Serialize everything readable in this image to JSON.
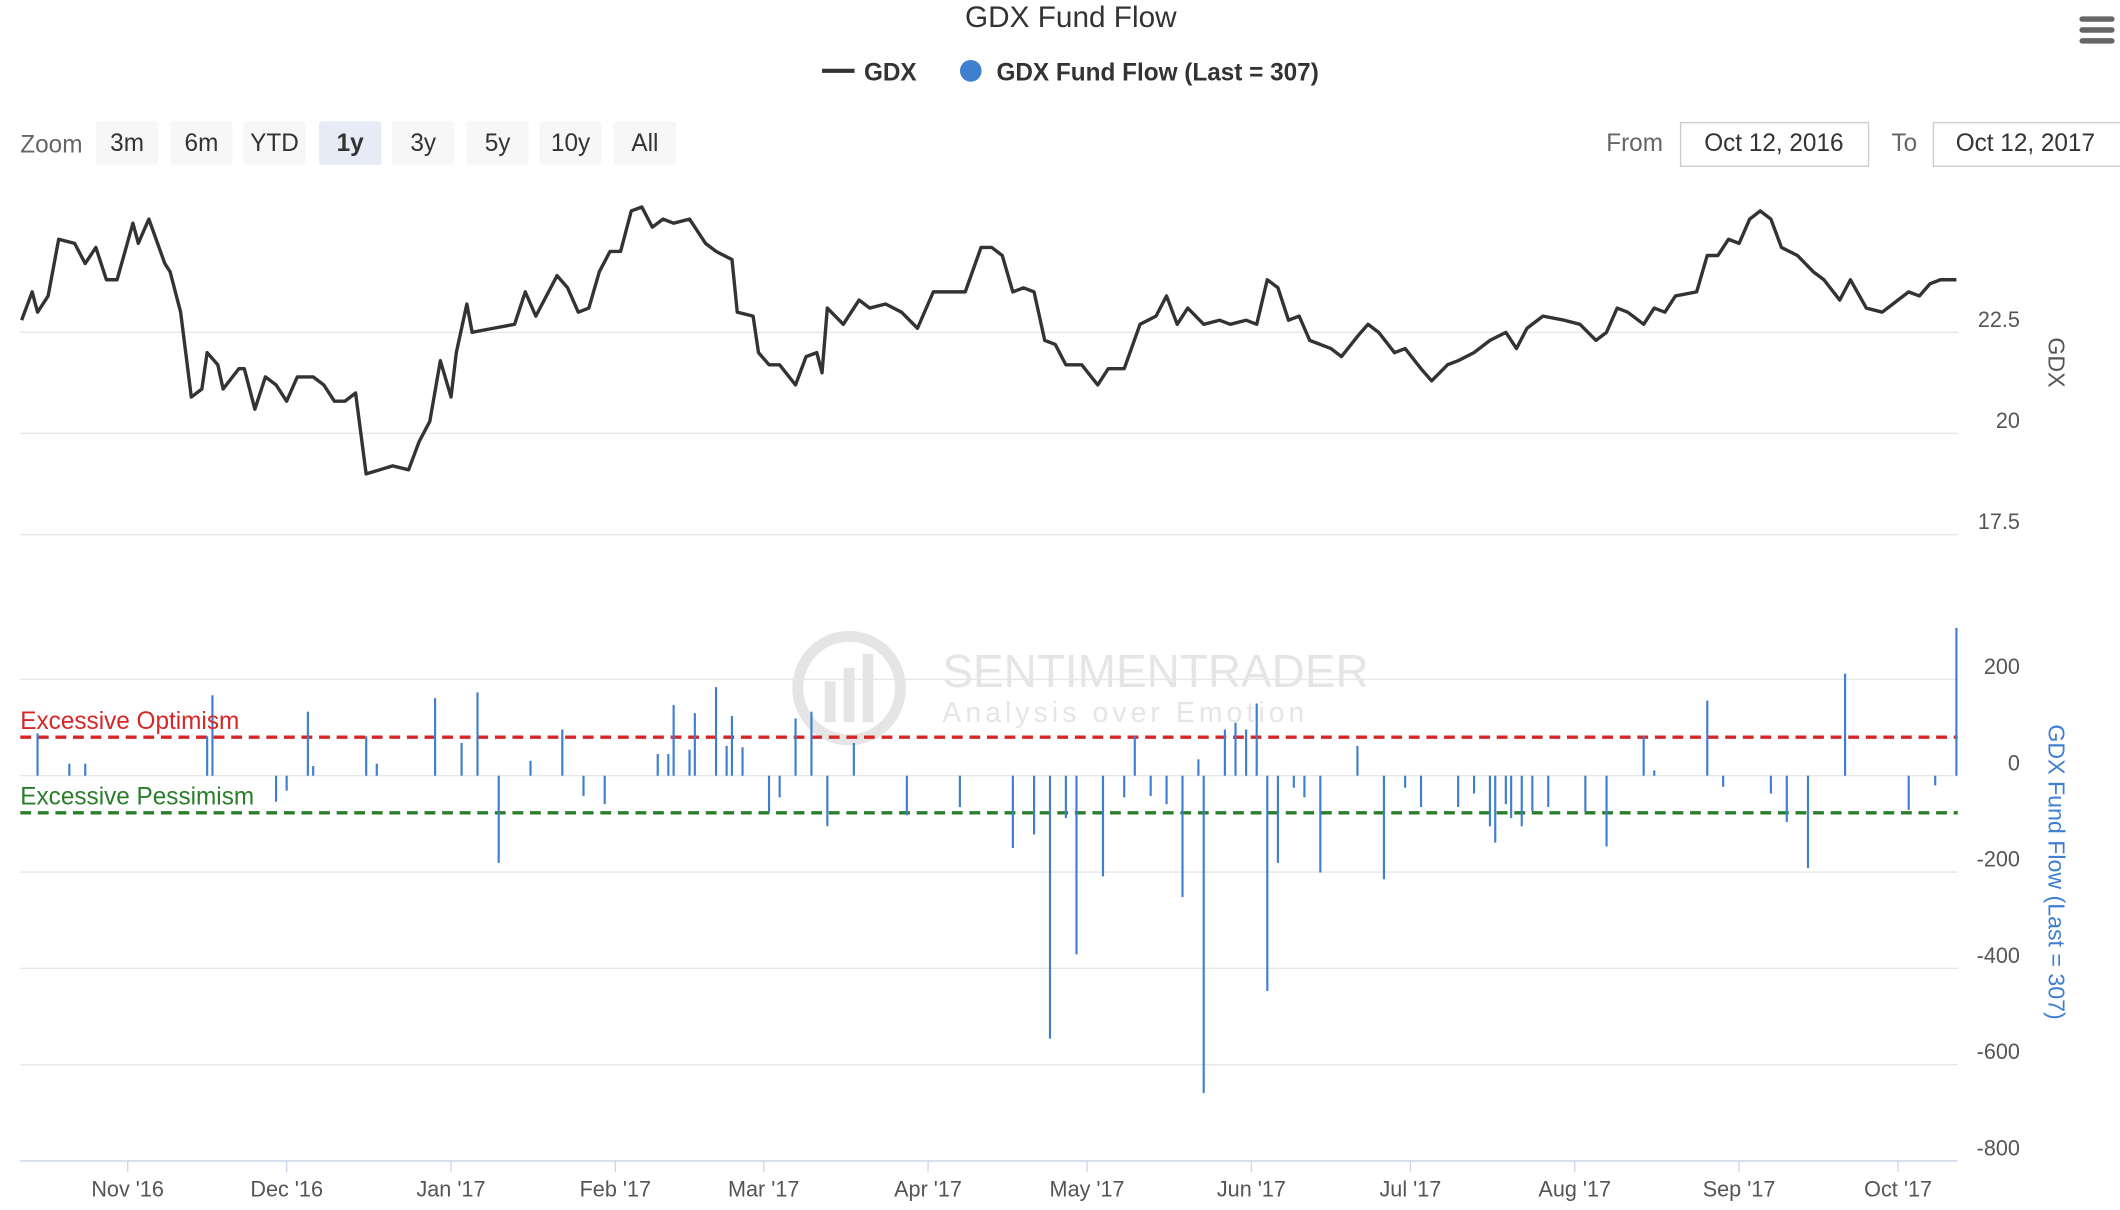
{
  "title": "GDX Fund Flow",
  "zoom": {
    "label": "Zoom",
    "buttons": [
      "3m",
      "6m",
      "YTD",
      "1y",
      "3y",
      "5y",
      "10y",
      "All"
    ],
    "selected": "1y"
  },
  "range": {
    "from_label": "From",
    "from": "Oct 12, 2016",
    "to_label": "To",
    "to": "Oct 12, 2017"
  },
  "watermark": {
    "name": "SENTIMENTRADER",
    "tagline": "Analysis over Emotion"
  },
  "chart_data": [
    {
      "type": "line",
      "y_label": "GDX",
      "xlim": [
        "2016-10-12",
        "2017-10-12"
      ],
      "ylim": [
        16.4,
        26
      ],
      "yticks": [
        17.5,
        20,
        22.5
      ],
      "grid": true,
      "series": [
        {
          "name": "GDX",
          "color": "#333333",
          "x": [
            "2016-10-12",
            "2016-10-14",
            "2016-10-15",
            "2016-10-17",
            "2016-10-19",
            "2016-10-22",
            "2016-10-24",
            "2016-10-26",
            "2016-10-28",
            "2016-10-30",
            "2016-11-02",
            "2016-11-03",
            "2016-11-05",
            "2016-11-08",
            "2016-11-09",
            "2016-11-11",
            "2016-11-13",
            "2016-11-15",
            "2016-11-16",
            "2016-11-18",
            "2016-11-19",
            "2016-11-22",
            "2016-11-23",
            "2016-11-25",
            "2016-11-27",
            "2016-11-29",
            "2016-12-01",
            "2016-12-03",
            "2016-12-06",
            "2016-12-08",
            "2016-12-10",
            "2016-12-12",
            "2016-12-14",
            "2016-12-16",
            "2016-12-21",
            "2016-12-24",
            "2016-12-26",
            "2016-12-28",
            "2016-12-30",
            "2017-01-01",
            "2017-01-02",
            "2017-01-04",
            "2017-01-05",
            "2017-01-09",
            "2017-01-13",
            "2017-01-15",
            "2017-01-17",
            "2017-01-21",
            "2017-01-23",
            "2017-01-25",
            "2017-01-27",
            "2017-01-29",
            "2017-01-31",
            "2017-02-02",
            "2017-02-04",
            "2017-02-06",
            "2017-02-08",
            "2017-02-10",
            "2017-02-12",
            "2017-02-15",
            "2017-02-18",
            "2017-02-20",
            "2017-02-23",
            "2017-02-24",
            "2017-02-27",
            "2017-02-28",
            "2017-03-02",
            "2017-03-04",
            "2017-03-07",
            "2017-03-09",
            "2017-03-11",
            "2017-03-12",
            "2017-03-13",
            "2017-03-16",
            "2017-03-19",
            "2017-03-21",
            "2017-03-24",
            "2017-03-27",
            "2017-03-30",
            "2017-04-02",
            "2017-04-04",
            "2017-04-08",
            "2017-04-11",
            "2017-04-13",
            "2017-04-15",
            "2017-04-17",
            "2017-04-19",
            "2017-04-21",
            "2017-04-23",
            "2017-04-25",
            "2017-04-27",
            "2017-04-30",
            "2017-05-03",
            "2017-05-05",
            "2017-05-08",
            "2017-05-11",
            "2017-05-14",
            "2017-05-16",
            "2017-05-18",
            "2017-05-20",
            "2017-05-23",
            "2017-05-26",
            "2017-05-28",
            "2017-05-31",
            "2017-06-02",
            "2017-06-04",
            "2017-06-06",
            "2017-06-08",
            "2017-06-10",
            "2017-06-12",
            "2017-06-16",
            "2017-06-18",
            "2017-06-21",
            "2017-06-23",
            "2017-06-25",
            "2017-06-28",
            "2017-06-30",
            "2017-07-03",
            "2017-07-05",
            "2017-07-08",
            "2017-07-10",
            "2017-07-13",
            "2017-07-16",
            "2017-07-19",
            "2017-07-21",
            "2017-07-23",
            "2017-07-26",
            "2017-07-30",
            "2017-08-02",
            "2017-08-05",
            "2017-08-07",
            "2017-08-09",
            "2017-08-11",
            "2017-08-14",
            "2017-08-16",
            "2017-08-18",
            "2017-08-20",
            "2017-08-24",
            "2017-08-26",
            "2017-08-28",
            "2017-08-30",
            "2017-09-01",
            "2017-09-03",
            "2017-09-05",
            "2017-09-07",
            "2017-09-09",
            "2017-09-12",
            "2017-09-15",
            "2017-09-17",
            "2017-09-20",
            "2017-09-22",
            "2017-09-25",
            "2017-09-28",
            "2017-09-30",
            "2017-10-03",
            "2017-10-05",
            "2017-10-07",
            "2017-10-09",
            "2017-10-12"
          ],
          "values": [
            22.8,
            23.5,
            23.0,
            23.4,
            24.8,
            24.7,
            24.2,
            24.6,
            23.8,
            23.8,
            25.2,
            24.7,
            25.3,
            24.2,
            24.0,
            23.0,
            20.9,
            21.1,
            22.0,
            21.7,
            21.1,
            21.6,
            21.6,
            20.6,
            21.4,
            21.2,
            20.8,
            21.4,
            21.4,
            21.2,
            20.8,
            20.8,
            21.0,
            19.0,
            19.2,
            19.1,
            19.8,
            20.3,
            21.8,
            20.9,
            22.0,
            23.2,
            22.5,
            22.6,
            22.7,
            23.5,
            22.9,
            23.9,
            23.6,
            23.0,
            23.1,
            24.0,
            24.5,
            24.5,
            25.5,
            25.6,
            25.1,
            25.3,
            25.2,
            25.3,
            24.7,
            24.5,
            24.3,
            23.0,
            22.9,
            22.0,
            21.7,
            21.7,
            21.2,
            21.9,
            22.0,
            21.5,
            23.1,
            22.7,
            23.3,
            23.1,
            23.2,
            23.0,
            22.6,
            23.5,
            23.5,
            23.5,
            24.6,
            24.6,
            24.4,
            23.5,
            23.6,
            23.5,
            22.3,
            22.2,
            21.7,
            21.7,
            21.2,
            21.6,
            21.6,
            22.7,
            22.9,
            23.4,
            22.7,
            23.1,
            22.7,
            22.8,
            22.7,
            22.8,
            22.7,
            23.8,
            23.6,
            22.8,
            22.9,
            22.3,
            22.1,
            21.9,
            22.4,
            22.7,
            22.5,
            22.0,
            22.1,
            21.6,
            21.3,
            21.7,
            21.8,
            22.0,
            22.3,
            22.5,
            22.1,
            22.6,
            22.9,
            22.8,
            22.7,
            22.3,
            22.5,
            23.1,
            23.0,
            22.7,
            23.1,
            23.0,
            23.4,
            23.5,
            24.4,
            24.4,
            24.8,
            24.7,
            25.3,
            25.5,
            25.3,
            24.6,
            24.4,
            24.0,
            23.8,
            23.3,
            23.8,
            23.1,
            23.0,
            23.2,
            23.5,
            23.4,
            23.7,
            23.8,
            23.8
          ]
        }
      ]
    },
    {
      "type": "bar",
      "y_label": "GDX Fund Flow (Last = 307)",
      "xlim": [
        "2016-10-12",
        "2017-10-12"
      ],
      "xticks": [
        {
          "value": "2016-11-01",
          "label": "Nov '16"
        },
        {
          "value": "2016-12-01",
          "label": "Dec '16"
        },
        {
          "value": "2017-01-01",
          "label": "Jan '17"
        },
        {
          "value": "2017-02-01",
          "label": "Feb '17"
        },
        {
          "value": "2017-03-01",
          "label": "Mar '17"
        },
        {
          "value": "2017-04-01",
          "label": "Apr '17"
        },
        {
          "value": "2017-05-01",
          "label": "May '17"
        },
        {
          "value": "2017-06-01",
          "label": "Jun '17"
        },
        {
          "value": "2017-07-01",
          "label": "Jul '17"
        },
        {
          "value": "2017-08-01",
          "label": "Aug '17"
        },
        {
          "value": "2017-09-01",
          "label": "Sep '17"
        },
        {
          "value": "2017-10-01",
          "label": "Oct '17"
        }
      ],
      "ylim": [
        -800,
        380
      ],
      "yticks": [
        -800,
        -600,
        -400,
        -200,
        0,
        200
      ],
      "grid": true,
      "annotations": [
        {
          "text": "Excessive Optimism",
          "value": 80,
          "color": "#d62728"
        },
        {
          "text": "Excessive Pessimism",
          "value": -77,
          "color": "#2a7d2a"
        }
      ],
      "series": [
        {
          "name": "GDX Fund Flow (Last = 307)",
          "color": "#3f7fd0",
          "x": [
            "2016-10-15",
            "2016-10-21",
            "2016-10-24",
            "2016-11-16",
            "2016-11-17",
            "2016-11-29",
            "2016-12-01",
            "2016-12-05",
            "2016-12-06",
            "2016-12-16",
            "2016-12-18",
            "2016-12-29",
            "2017-01-03",
            "2017-01-06",
            "2017-01-10",
            "2017-01-16",
            "2017-01-22",
            "2017-01-26",
            "2017-01-30",
            "2017-02-09",
            "2017-02-11",
            "2017-02-12",
            "2017-02-15",
            "2017-02-16",
            "2017-02-20",
            "2017-02-22",
            "2017-02-23",
            "2017-02-25",
            "2017-03-02",
            "2017-03-04",
            "2017-03-07",
            "2017-03-10",
            "2017-03-13",
            "2017-03-18",
            "2017-03-28",
            "2017-04-07",
            "2017-04-17",
            "2017-04-21",
            "2017-04-24",
            "2017-04-27",
            "2017-04-29",
            "2017-05-04",
            "2017-05-08",
            "2017-05-10",
            "2017-05-13",
            "2017-05-16",
            "2017-05-19",
            "2017-05-22",
            "2017-05-23",
            "2017-05-27",
            "2017-05-29",
            "2017-05-31",
            "2017-06-02",
            "2017-06-04",
            "2017-06-06",
            "2017-06-09",
            "2017-06-11",
            "2017-06-14",
            "2017-06-21",
            "2017-06-26",
            "2017-06-30",
            "2017-07-03",
            "2017-07-10",
            "2017-07-13",
            "2017-07-16",
            "2017-07-17",
            "2017-07-19",
            "2017-07-20",
            "2017-07-22",
            "2017-07-24",
            "2017-07-27",
            "2017-08-03",
            "2017-08-07",
            "2017-08-14",
            "2017-08-16",
            "2017-08-26",
            "2017-08-29",
            "2017-09-07",
            "2017-09-10",
            "2017-09-14",
            "2017-09-21",
            "2017-10-03",
            "2017-10-08",
            "2017-10-12"
          ],
          "values": [
            88,
            25,
            25,
            82,
            167,
            -54,
            -31,
            133,
            20,
            82,
            25,
            161,
            68,
            173,
            -181,
            31,
            96,
            -42,
            -59,
            45,
            45,
            147,
            54,
            130,
            184,
            62,
            124,
            59,
            -76,
            -45,
            119,
            133,
            -105,
            68,
            -82,
            -65,
            -150,
            -122,
            -546,
            -88,
            -371,
            -209,
            -45,
            82,
            -42,
            -59,
            -252,
            34,
            -659,
            96,
            110,
            96,
            150,
            -447,
            -181,
            -25,
            -45,
            -201,
            62,
            -215,
            -25,
            -65,
            -65,
            -37,
            -105,
            -139,
            -59,
            -88,
            -105,
            -74,
            -65,
            -74,
            -147,
            82,
            11,
            156,
            -23,
            -37,
            -96,
            -192,
            212,
            -71,
            -20,
            307
          ]
        }
      ]
    }
  ]
}
